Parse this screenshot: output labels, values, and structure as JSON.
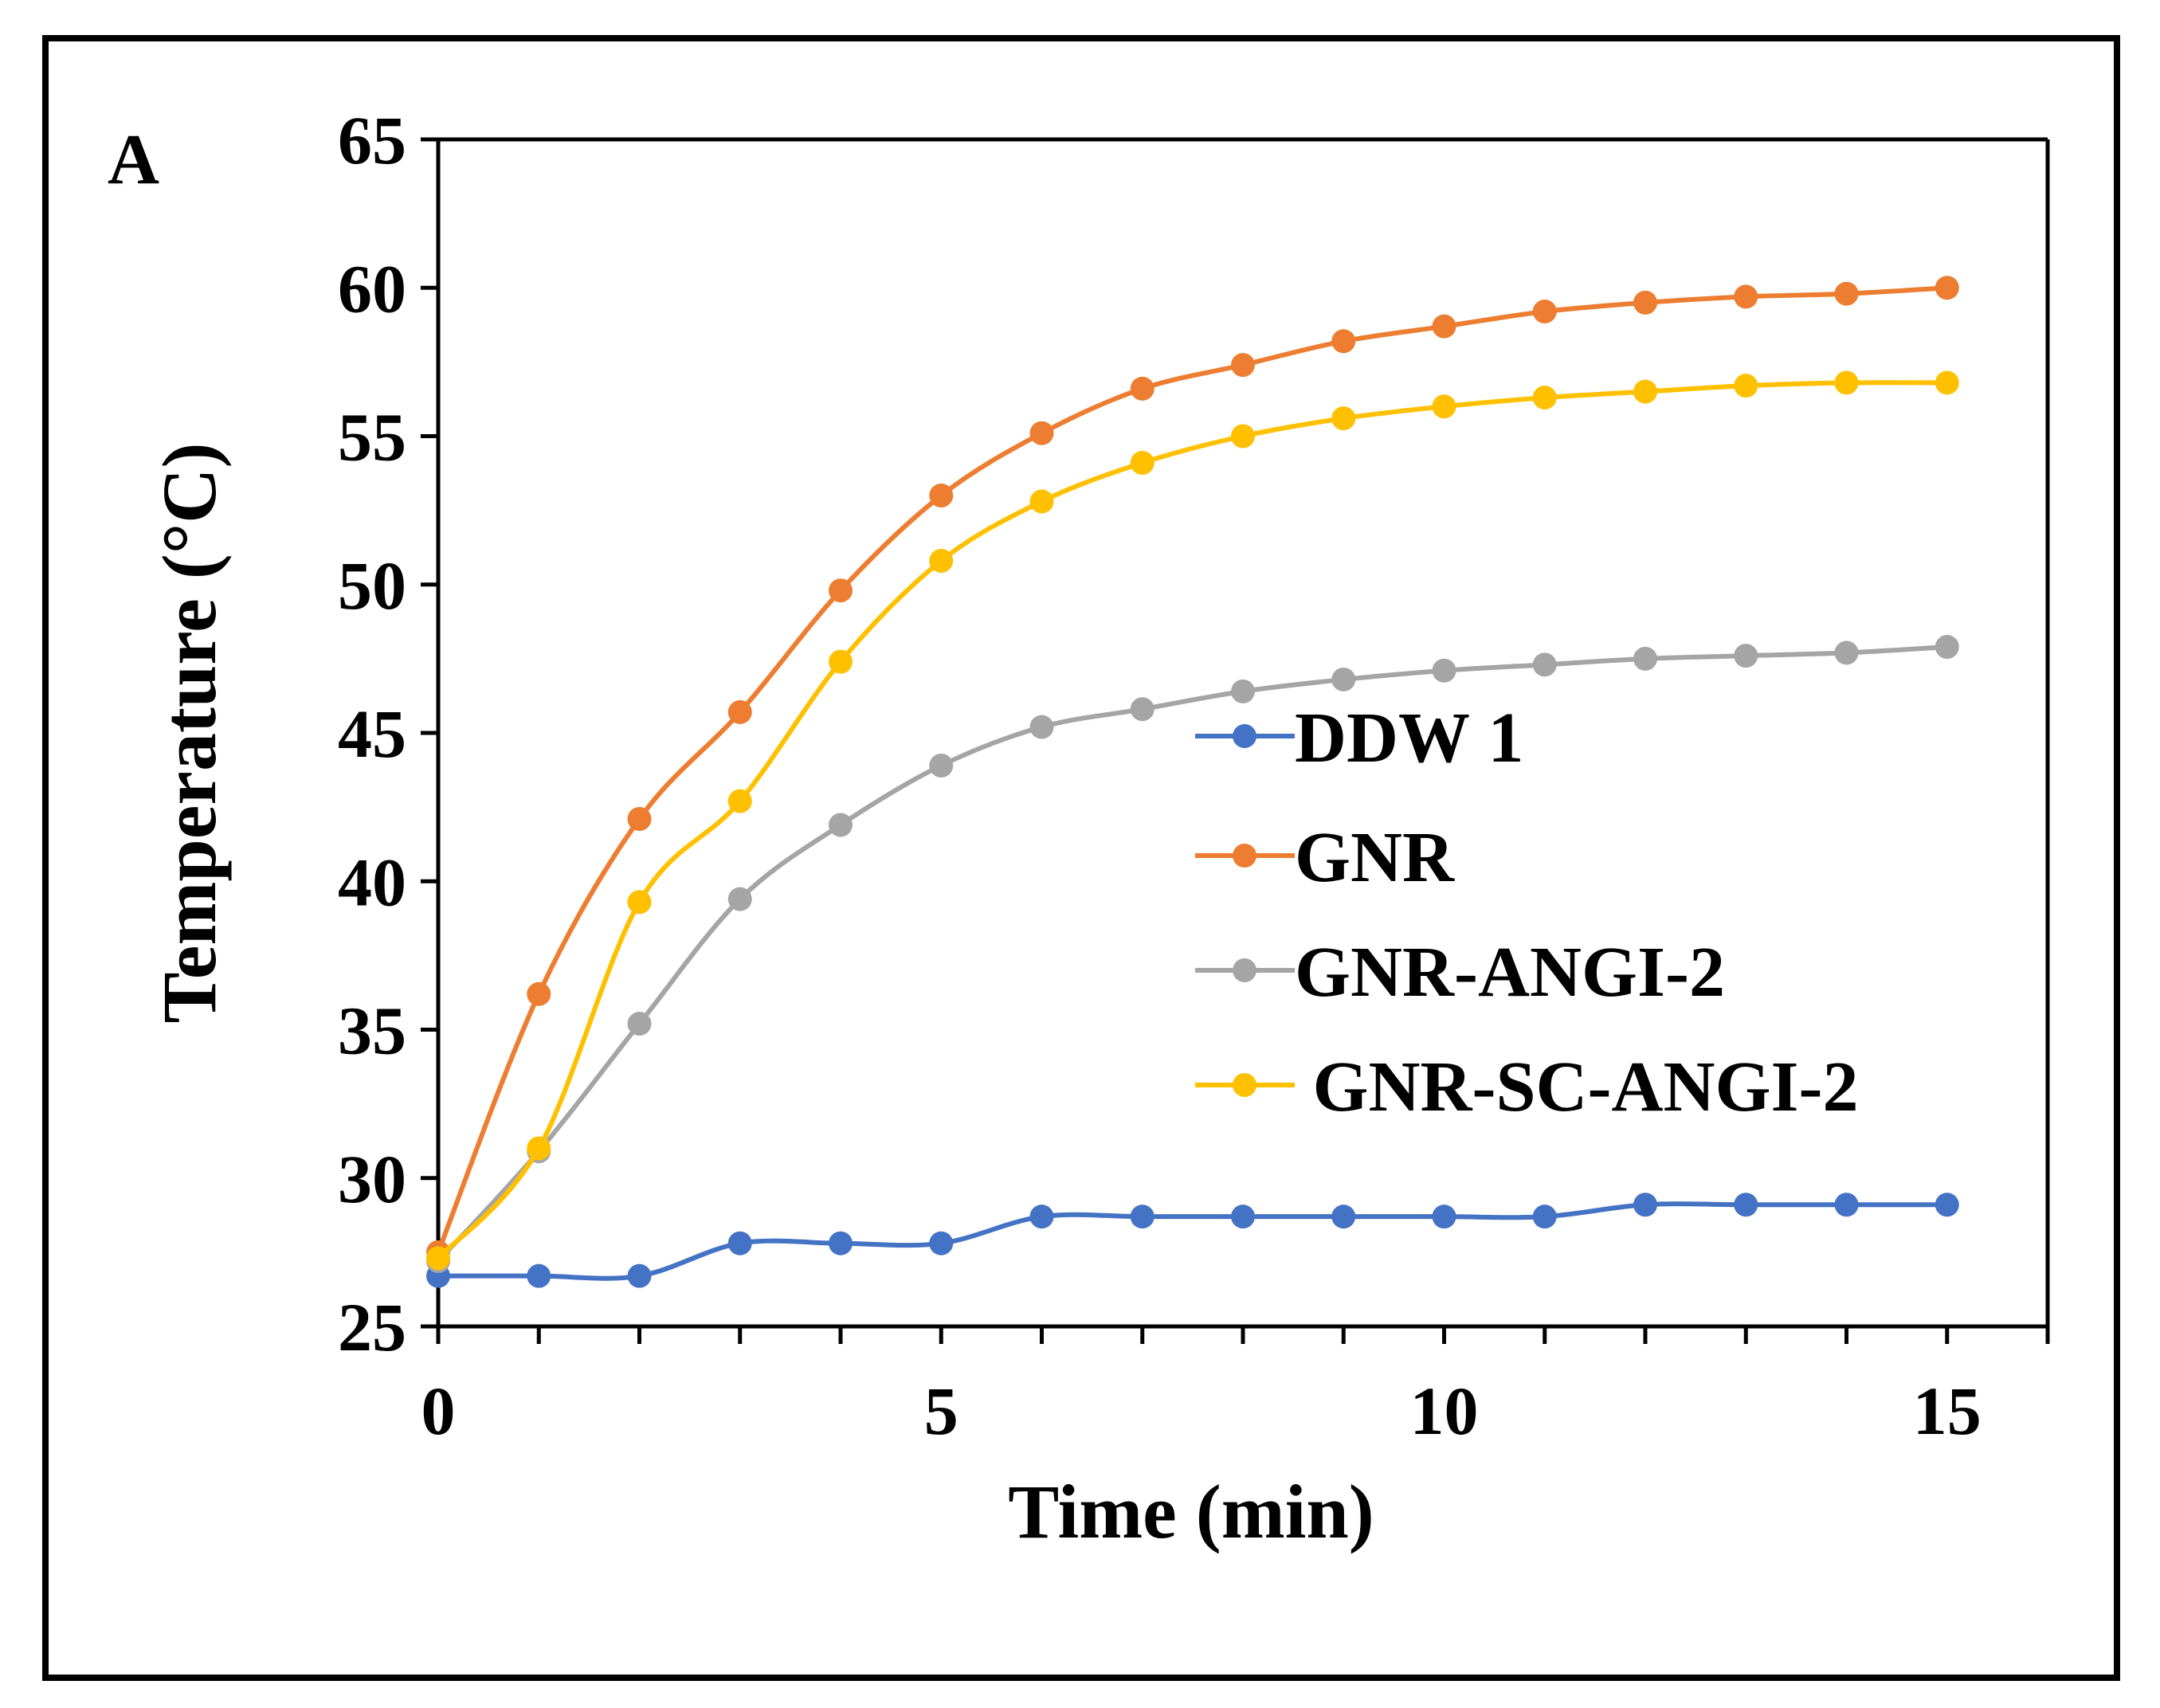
{
  "panel_label": "A",
  "colors": {
    "frame": "#000000",
    "axis": "#000000",
    "text": "#000000"
  },
  "chart_data": {
    "type": "line",
    "title": "",
    "xlabel": "Time (min)",
    "ylabel": "Temperature (°C)",
    "xlim": [
      0,
      16
    ],
    "ylim": [
      25,
      65
    ],
    "x_ticks": [
      0,
      5,
      10,
      15
    ],
    "y_ticks": [
      25,
      30,
      35,
      40,
      45,
      50,
      55,
      60,
      65
    ],
    "grid": false,
    "legend_position": "center-right",
    "x": [
      0,
      1,
      2,
      3,
      4,
      5,
      6,
      7,
      8,
      9,
      10,
      11,
      12,
      13,
      14,
      15
    ],
    "series": [
      {
        "name": "DDW 1",
        "color": "#4472C4",
        "values": [
          26.7,
          26.7,
          26.7,
          27.8,
          27.8,
          27.8,
          28.7,
          28.7,
          28.7,
          28.7,
          28.7,
          28.7,
          29.1,
          29.1,
          29.1,
          29.1
        ]
      },
      {
        "name": "GNR",
        "color": "#ED7D31",
        "values": [
          27.5,
          36.2,
          42.1,
          45.7,
          49.8,
          53.0,
          55.1,
          56.6,
          57.4,
          58.2,
          58.7,
          59.2,
          59.5,
          59.7,
          59.8,
          60.0
        ]
      },
      {
        "name": "GNR-ANGI-2",
        "color": "#A5A5A5",
        "values": [
          27.2,
          30.9,
          35.2,
          39.4,
          41.9,
          43.9,
          45.2,
          45.8,
          46.4,
          46.8,
          47.1,
          47.3,
          47.5,
          47.6,
          47.7,
          47.9
        ]
      },
      {
        "name": " GNR-SC-ANGI-2",
        "color": "#FFC000",
        "values": [
          27.3,
          31.0,
          39.3,
          42.7,
          47.4,
          50.8,
          52.8,
          54.1,
          55.0,
          55.6,
          56.0,
          56.3,
          56.5,
          56.7,
          56.8,
          56.8
        ]
      }
    ]
  }
}
